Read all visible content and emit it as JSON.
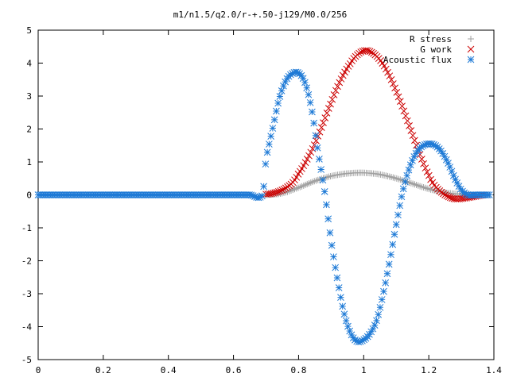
{
  "chart_data": {
    "type": "scatter",
    "title": "m1/n1.5/q2.0/r-+.50-j129/M0.0/256",
    "xlabel": "",
    "ylabel": "",
    "xlim": [
      0,
      1.4
    ],
    "ylim": [
      -5,
      5
    ],
    "xticks": [
      "0",
      "0.2",
      "0.4",
      "0.6",
      "0.8",
      "1",
      "1.2",
      "1.4"
    ],
    "yticks": [
      "5",
      "4",
      "3",
      "2",
      "1",
      "0",
      "-1",
      "-2",
      "-3",
      "-4",
      "-5"
    ],
    "grid": false,
    "legend_position": "top-right",
    "series": [
      {
        "name": "R stress",
        "marker": "plus",
        "color": "#a0a0a0",
        "x": [
          0.7,
          0.75,
          0.8,
          0.85,
          0.9,
          0.95,
          1.0,
          1.05,
          1.1,
          1.15,
          1.2,
          1.25,
          1.3,
          1.35,
          1.39
        ],
        "y": [
          0.0,
          0.05,
          0.22,
          0.42,
          0.57,
          0.65,
          0.67,
          0.62,
          0.5,
          0.34,
          0.18,
          0.07,
          0.02,
          0.0,
          0.0
        ]
      },
      {
        "name": "G work",
        "marker": "cross",
        "color": "#cc0000",
        "x": [
          0.7,
          0.72,
          0.75,
          0.78,
          0.8,
          0.83,
          0.86,
          0.9,
          0.93,
          0.96,
          0.98,
          1.0,
          1.02,
          1.05,
          1.08,
          1.11,
          1.14,
          1.17,
          1.2,
          1.22,
          1.25,
          1.28,
          1.31,
          1.34,
          1.37
        ],
        "y": [
          0.02,
          0.05,
          0.15,
          0.35,
          0.65,
          1.15,
          1.8,
          2.8,
          3.5,
          4.0,
          4.25,
          4.37,
          4.35,
          4.1,
          3.6,
          2.9,
          2.1,
          1.3,
          0.6,
          0.25,
          0.0,
          -0.12,
          -0.1,
          -0.05,
          0.0
        ]
      },
      {
        "name": "Acoustic flux",
        "marker": "star",
        "color": "#1e7ad6",
        "x": [
          0.0,
          0.05,
          0.1,
          0.15,
          0.2,
          0.25,
          0.3,
          0.35,
          0.4,
          0.45,
          0.5,
          0.55,
          0.6,
          0.65,
          0.69,
          0.7,
          0.72,
          0.74,
          0.76,
          0.78,
          0.8,
          0.82,
          0.84,
          0.86,
          0.88,
          0.9,
          0.92,
          0.94,
          0.96,
          0.98,
          1.0,
          1.02,
          1.04,
          1.06,
          1.08,
          1.1,
          1.12,
          1.14,
          1.16,
          1.18,
          1.2,
          1.22,
          1.24,
          1.26,
          1.28,
          1.3,
          1.32,
          1.34,
          1.36,
          1.38,
          1.39
        ],
        "y": [
          0.0,
          0.0,
          0.0,
          0.0,
          0.0,
          0.0,
          0.0,
          0.0,
          0.0,
          0.0,
          0.0,
          0.0,
          0.0,
          0.0,
          0.0,
          1.1,
          2.0,
          2.9,
          3.45,
          3.68,
          3.7,
          3.4,
          2.6,
          1.3,
          0.1,
          -1.4,
          -2.6,
          -3.6,
          -4.2,
          -4.45,
          -4.4,
          -4.2,
          -3.8,
          -3.0,
          -2.0,
          -0.9,
          0.1,
          0.8,
          1.25,
          1.48,
          1.55,
          1.5,
          1.3,
          0.95,
          0.5,
          0.15,
          0.0,
          0.0,
          0.0,
          0.0,
          0.0
        ]
      }
    ]
  }
}
